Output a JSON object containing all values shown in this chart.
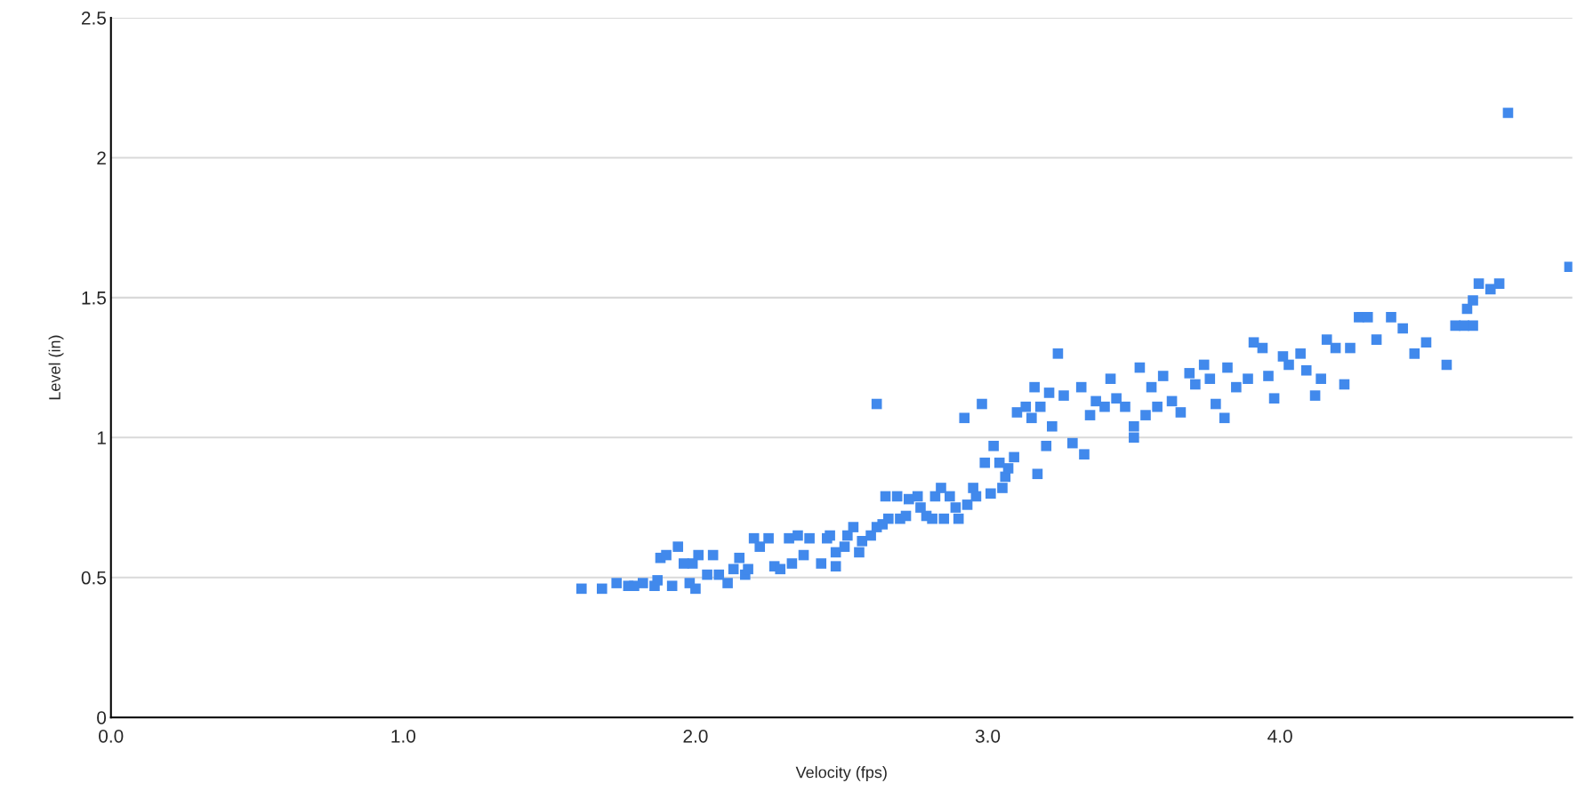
{
  "chart_data": {
    "type": "scatter",
    "xlabel": "Velocity (fps)",
    "ylabel": "Level (in)",
    "xlim": [
      0,
      5
    ],
    "xticks": [
      {
        "value": 0,
        "label": "0.0"
      },
      {
        "value": 1,
        "label": "1.0"
      },
      {
        "value": 2,
        "label": "2.0"
      },
      {
        "value": 3,
        "label": "3.0"
      },
      {
        "value": 4,
        "label": "4.0"
      }
    ],
    "ylim": [
      0,
      2.5
    ],
    "yticks": [
      0,
      0.5,
      1,
      1.5,
      2,
      2.5
    ],
    "grid": "y",
    "marker": "square",
    "legend": false,
    "series": [
      {
        "color": "#4189ec",
        "x": [
          1.61,
          1.68,
          1.73,
          1.77,
          1.79,
          1.82,
          1.86,
          1.87,
          1.88,
          1.9,
          1.92,
          1.94,
          1.96,
          1.98,
          1.99,
          2.0,
          2.01,
          2.04,
          2.06,
          2.08,
          2.11,
          2.13,
          2.15,
          2.17,
          2.18,
          2.2,
          2.22,
          2.25,
          2.27,
          2.29,
          2.32,
          2.33,
          2.35,
          2.37,
          2.39,
          2.43,
          2.45,
          2.46,
          2.48,
          2.48,
          2.51,
          2.52,
          2.54,
          2.56,
          2.57,
          2.6,
          2.62,
          2.62,
          2.64,
          2.65,
          2.66,
          2.69,
          2.7,
          2.72,
          2.73,
          2.76,
          2.77,
          2.79,
          2.81,
          2.82,
          2.84,
          2.85,
          2.87,
          2.89,
          2.9,
          2.92,
          2.93,
          2.95,
          2.96,
          2.98,
          2.99,
          3.01,
          3.02,
          3.04,
          3.05,
          3.06,
          3.07,
          3.09,
          3.1,
          3.13,
          3.15,
          3.16,
          3.17,
          3.18,
          3.2,
          3.21,
          3.22,
          3.24,
          3.26,
          3.29,
          3.32,
          3.33,
          3.35,
          3.37,
          3.4,
          3.42,
          3.44,
          3.47,
          3.5,
          3.5,
          3.52,
          3.54,
          3.56,
          3.58,
          3.6,
          3.63,
          3.66,
          3.69,
          3.71,
          3.74,
          3.76,
          3.78,
          3.81,
          3.82,
          3.85,
          3.89,
          3.91,
          3.94,
          3.96,
          3.98,
          4.01,
          4.03,
          4.07,
          4.09,
          4.12,
          4.14,
          4.16,
          4.19,
          4.22,
          4.24,
          4.27,
          4.3,
          4.33,
          4.38,
          4.42,
          4.46,
          4.5,
          4.57,
          4.6,
          4.63,
          4.64,
          4.66,
          4.66,
          4.68,
          4.72,
          4.75,
          4.78,
          4.99
        ],
        "values": [
          0.46,
          0.46,
          0.48,
          0.47,
          0.47,
          0.48,
          0.47,
          0.49,
          0.57,
          0.58,
          0.47,
          0.61,
          0.55,
          0.48,
          0.55,
          0.46,
          0.58,
          0.51,
          0.58,
          0.51,
          0.48,
          0.53,
          0.57,
          0.51,
          0.53,
          0.64,
          0.61,
          0.64,
          0.54,
          0.53,
          0.64,
          0.55,
          0.65,
          0.58,
          0.64,
          0.55,
          0.64,
          0.65,
          0.59,
          0.54,
          0.61,
          0.65,
          0.68,
          0.59,
          0.63,
          0.65,
          0.68,
          1.12,
          0.69,
          0.79,
          0.71,
          0.79,
          0.71,
          0.72,
          0.78,
          0.79,
          0.75,
          0.72,
          0.71,
          0.79,
          0.82,
          0.71,
          0.79,
          0.75,
          0.71,
          1.07,
          0.76,
          0.82,
          0.79,
          1.12,
          0.91,
          0.8,
          0.97,
          0.91,
          0.82,
          0.86,
          0.89,
          0.93,
          1.09,
          1.11,
          1.07,
          1.18,
          0.87,
          1.11,
          0.97,
          1.16,
          1.04,
          1.3,
          1.15,
          0.98,
          1.18,
          0.94,
          1.08,
          1.13,
          1.11,
          1.21,
          1.14,
          1.11,
          1.0,
          1.04,
          1.25,
          1.08,
          1.18,
          1.11,
          1.22,
          1.13,
          1.09,
          1.23,
          1.19,
          1.26,
          1.21,
          1.12,
          1.07,
          1.25,
          1.18,
          1.21,
          1.34,
          1.32,
          1.22,
          1.14,
          1.29,
          1.26,
          1.3,
          1.24,
          1.15,
          1.21,
          1.35,
          1.32,
          1.19,
          1.32,
          1.43,
          1.43,
          1.35,
          1.43,
          1.39,
          1.3,
          1.34,
          1.26,
          1.4,
          1.4,
          1.46,
          1.49,
          1.4,
          1.55,
          1.53,
          1.55,
          2.16,
          1.61
        ]
      }
    ]
  }
}
